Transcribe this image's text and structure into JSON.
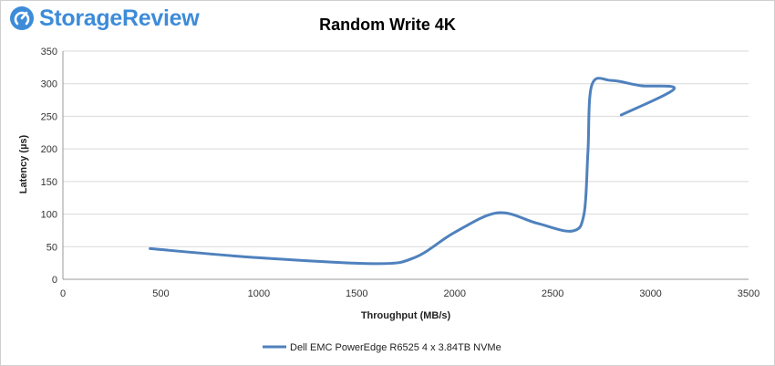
{
  "brand": {
    "name": "StorageReview",
    "logo_icon": "storagereview-logo-icon",
    "color": "#3d8bd9"
  },
  "chart_data": {
    "type": "line",
    "title": "Random Write 4K",
    "xlabel": "Throughput  (MB/s)",
    "ylabel": "Latency (µs)",
    "xlim": [
      0,
      3500
    ],
    "ylim": [
      0,
      350
    ],
    "xticks": [
      0,
      500,
      1000,
      1500,
      2000,
      2500,
      3000,
      3500
    ],
    "yticks": [
      0,
      50,
      100,
      150,
      200,
      250,
      300,
      350
    ],
    "grid": true,
    "legend_position": "bottom",
    "series": [
      {
        "name": "Dell EMC PowerEdge R6525 4 x 3.84TB NVMe",
        "color": "#4f81bd",
        "x": [
          445,
          1000,
          1600,
          1800,
          2000,
          2220,
          2420,
          2600,
          2660,
          2680,
          2700,
          2800,
          2950,
          3120,
          2850
        ],
        "y": [
          47,
          33,
          24,
          34,
          72,
          102,
          86,
          74,
          100,
          195,
          298,
          305,
          297,
          292,
          252
        ]
      }
    ]
  }
}
